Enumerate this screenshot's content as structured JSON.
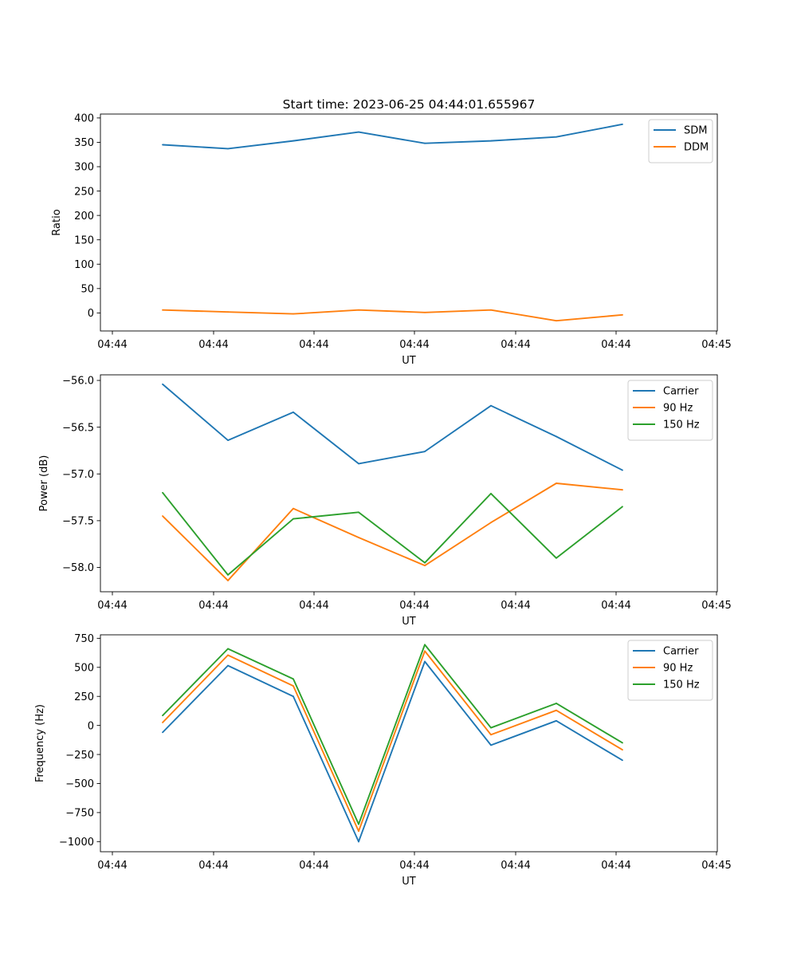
{
  "figure_title": "Start time: 2023-06-25 04:44:01.655967",
  "colors": {
    "blue": "#1f77b4",
    "orange": "#ff7f0e",
    "green": "#2ca02c"
  },
  "chart_data": [
    {
      "type": "line",
      "title": "Start time: 2023-06-25 04:44:01.655967",
      "xlabel": "UT",
      "ylabel": "Ratio",
      "xticks": [
        "04:44",
        "04:44",
        "04:44",
        "04:44",
        "04:44",
        "04:44",
        "04:45"
      ],
      "yticks": [
        0,
        50,
        100,
        150,
        200,
        250,
        300,
        350,
        400
      ],
      "ylim": [
        -37,
        408
      ],
      "grid": false,
      "legend": "top-right",
      "series": [
        {
          "name": "SDM",
          "color": "#1f77b4",
          "values": [
            345,
            337,
            353,
            371,
            348,
            353,
            361,
            387
          ]
        },
        {
          "name": "DDM",
          "color": "#ff7f0e",
          "values": [
            6,
            2,
            -2,
            6,
            1,
            6,
            -16,
            -4
          ]
        }
      ]
    },
    {
      "type": "line",
      "xlabel": "UT",
      "ylabel": "Power (dB)",
      "xticks": [
        "04:44",
        "04:44",
        "04:44",
        "04:44",
        "04:44",
        "04:44",
        "04:45"
      ],
      "yticks": [
        -58.0,
        -57.5,
        -57.0,
        -56.5,
        -56.0
      ],
      "ylim": [
        -58.26,
        -55.94
      ],
      "grid": false,
      "legend": "top-right",
      "series": [
        {
          "name": "Carrier",
          "color": "#1f77b4",
          "values": [
            -56.04,
            -56.64,
            -56.34,
            -56.89,
            -56.76,
            -56.27,
            -56.6,
            -56.96
          ]
        },
        {
          "name": "90 Hz",
          "color": "#ff7f0e",
          "values": [
            -57.45,
            -58.14,
            -57.37,
            -57.68,
            -57.98,
            -57.52,
            -57.1,
            -57.17
          ]
        },
        {
          "name": "150 Hz",
          "color": "#2ca02c",
          "values": [
            -57.2,
            -58.08,
            -57.48,
            -57.41,
            -57.95,
            -57.21,
            -57.9,
            -57.35
          ]
        }
      ]
    },
    {
      "type": "line",
      "xlabel": "UT",
      "ylabel": "Frequency (Hz)",
      "xticks": [
        "04:44",
        "04:44",
        "04:44",
        "04:44",
        "04:44",
        "04:44",
        "04:45"
      ],
      "yticks": [
        -1000,
        -750,
        -500,
        -250,
        0,
        250,
        500,
        750
      ],
      "ylim": [
        -1087,
        780
      ],
      "grid": false,
      "legend": "top-right",
      "series": [
        {
          "name": "Carrier",
          "color": "#1f77b4",
          "values": [
            -60,
            515,
            250,
            -1000,
            550,
            -170,
            40,
            -300
          ]
        },
        {
          "name": "90 Hz",
          "color": "#ff7f0e",
          "values": [
            25,
            605,
            340,
            -910,
            640,
            -80,
            130,
            -210
          ]
        },
        {
          "name": "150 Hz",
          "color": "#2ca02c",
          "values": [
            85,
            660,
            400,
            -850,
            695,
            -20,
            190,
            -150
          ]
        }
      ]
    }
  ]
}
